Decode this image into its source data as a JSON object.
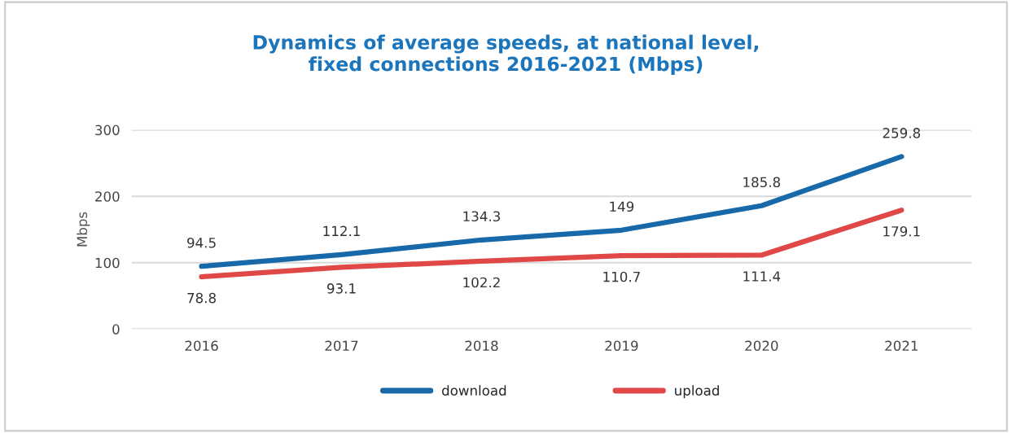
{
  "chart_data": {
    "type": "line",
    "title": "Dynamics of average speeds, at national level,\nfixed connections 2016-2021 (Mbps)",
    "ylabel": "Mbps",
    "categories": [
      "2016",
      "2017",
      "2018",
      "2019",
      "2020",
      "2021"
    ],
    "series": [
      {
        "name": "download",
        "color": "#1769aa",
        "values": [
          94.5,
          112.1,
          134.3,
          149,
          185.8,
          259.8
        ]
      },
      {
        "name": "upload",
        "color": "#e04848",
        "values": [
          78.8,
          93.1,
          102.2,
          110.7,
          111.4,
          179.1
        ]
      }
    ],
    "ylim": [
      0,
      300
    ],
    "yticks": [
      0,
      100,
      200,
      300
    ],
    "grid": "y",
    "legend": "bottom",
    "data_labels": true,
    "marker": "none",
    "line_style": "solid"
  }
}
